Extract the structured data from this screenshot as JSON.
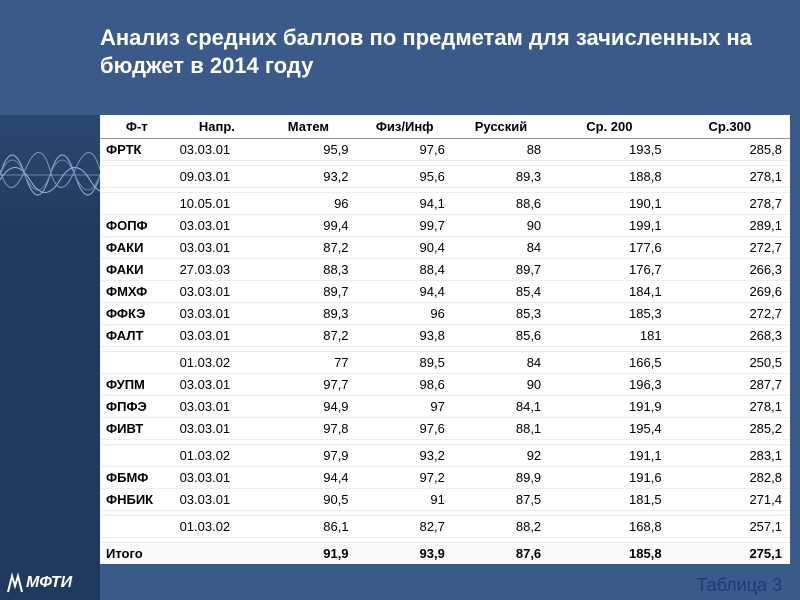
{
  "title": "Анализ средних баллов по предметам для зачисленных на бюджет в 2014 году",
  "caption": "Таблица 3",
  "logo_text": "МФТИ",
  "colors": {
    "page_bg": "#3a5a8a",
    "sidebar_bg": "#1f3a5f",
    "text_light": "#ffffff",
    "table_bg": "#ffffff",
    "caption_color": "#1f3a7a",
    "grid": "#eeeeee"
  },
  "table": {
    "columns": [
      "Ф-т",
      "Напр.",
      "Матем",
      "Физ/Инф",
      "Русский",
      "Ср. 200",
      "Ср.300"
    ],
    "rows": [
      {
        "ft": "ФРТК",
        "napr": "03.03.01",
        "v": [
          "95,9",
          "97,6",
          "88",
          "193,5",
          "285,8"
        ]
      },
      {
        "ft": "",
        "napr": "",
        "v": [
          "",
          "",
          "",
          "",
          ""
        ],
        "spacer": true
      },
      {
        "ft": "",
        "napr": "09.03.01",
        "v": [
          "93,2",
          "95,6",
          "89,3",
          "188,8",
          "278,1"
        ]
      },
      {
        "ft": "",
        "napr": "",
        "v": [
          "",
          "",
          "",
          "",
          ""
        ],
        "spacer": true
      },
      {
        "ft": "",
        "napr": "10.05.01",
        "v": [
          "96",
          "94,1",
          "88,6",
          "190,1",
          "278,7"
        ]
      },
      {
        "ft": "ФОПФ",
        "napr": "03.03.01",
        "v": [
          "99,4",
          "99,7",
          "90",
          "199,1",
          "289,1"
        ]
      },
      {
        "ft": "ФАКИ",
        "napr": "03.03.01",
        "v": [
          "87,2",
          "90,4",
          "84",
          "177,6",
          "272,7"
        ]
      },
      {
        "ft": "ФАКИ",
        "napr": "27.03.03",
        "v": [
          "88,3",
          "88,4",
          "89,7",
          "176,7",
          "266,3"
        ]
      },
      {
        "ft": "ФМХФ",
        "napr": "03.03.01",
        "v": [
          "89,7",
          "94,4",
          "85,4",
          "184,1",
          "269,6"
        ]
      },
      {
        "ft": "ФФКЭ",
        "napr": "03.03.01",
        "v": [
          "89,3",
          "96",
          "85,3",
          "185,3",
          "272,7"
        ]
      },
      {
        "ft": "ФАЛТ",
        "napr": "03.03.01",
        "v": [
          "87,2",
          "93,8",
          "85,6",
          "181",
          "268,3"
        ]
      },
      {
        "ft": "",
        "napr": "",
        "v": [
          "",
          "",
          "",
          "",
          ""
        ],
        "spacer": true
      },
      {
        "ft": "",
        "napr": "01.03.02",
        "v": [
          "77",
          "89,5",
          "84",
          "166,5",
          "250,5"
        ]
      },
      {
        "ft": "ФУПМ",
        "napr": "03.03.01",
        "v": [
          "97,7",
          "98,6",
          "90",
          "196,3",
          "287,7"
        ]
      },
      {
        "ft": "ФПФЭ",
        "napr": "03.03.01",
        "v": [
          "94,9",
          "97",
          "84,1",
          "191,9",
          "278,1"
        ]
      },
      {
        "ft": "ФИВТ",
        "napr": "03.03.01",
        "v": [
          "97,8",
          "97,6",
          "88,1",
          "195,4",
          "285,2"
        ]
      },
      {
        "ft": "",
        "napr": "",
        "v": [
          "",
          "",
          "",
          "",
          ""
        ],
        "spacer": true
      },
      {
        "ft": "",
        "napr": "01.03.02",
        "v": [
          "97,9",
          "93,2",
          "92",
          "191,1",
          "283,1"
        ]
      },
      {
        "ft": "ФБМФ",
        "napr": "03.03.01",
        "v": [
          "94,4",
          "97,2",
          "89,9",
          "191,6",
          "282,8"
        ]
      },
      {
        "ft": "ФНБИК",
        "napr": "03.03.01",
        "v": [
          "90,5",
          "91",
          "87,5",
          "181,5",
          "271,4"
        ]
      },
      {
        "ft": "",
        "napr": "",
        "v": [
          "",
          "",
          "",
          "",
          ""
        ],
        "spacer": true
      },
      {
        "ft": "",
        "napr": "01.03.02",
        "v": [
          "86,1",
          "82,7",
          "88,2",
          "168,8",
          "257,1"
        ]
      },
      {
        "ft": "",
        "napr": "",
        "v": [
          "",
          "",
          "",
          "",
          ""
        ],
        "spacer": true
      }
    ],
    "total": {
      "label": "Итого",
      "v": [
        "91,9",
        "93,9",
        "87,6",
        "185,8",
        "275,1"
      ]
    }
  }
}
